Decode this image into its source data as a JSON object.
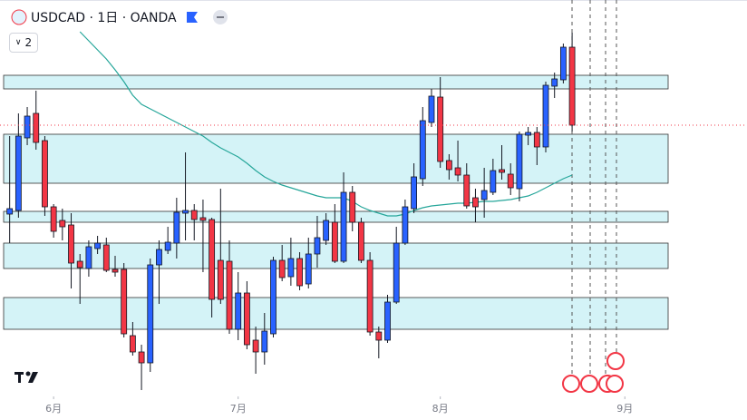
{
  "chart_data": {
    "type": "candlestick",
    "title": "USDCAD · 1日 · OANDA",
    "indicators_shown": "2",
    "up_color": "#2962ff",
    "down_color": "#f23645",
    "ma_color": "#26a69a",
    "zone_color": "#d4f3f7",
    "xlim": [
      -1.1,
      83.9
    ],
    "ylim": [
      0,
      430
    ],
    "xticks": [
      {
        "value": 5,
        "label": "6月"
      },
      {
        "value": 26,
        "label": "7月"
      },
      {
        "value": 49,
        "label": "8月"
      },
      {
        "value": 70,
        "label": "9月"
      }
    ],
    "open": [
      194,
      198,
      278,
      305,
      275,
      202,
      187,
      182,
      142,
      134,
      156,
      160,
      133,
      133,
      60,
      42,
      30,
      138,
      154,
      162,
      195,
      198,
      190,
      188,
      143,
      142,
      67,
      107,
      55,
      42,
      62,
      143,
      125,
      145,
      117,
      150,
      165,
      185,
      142,
      218,
      185,
      143,
      64,
      55,
      97,
      162,
      200,
      233,
      295,
      323,
      253,
      245,
      237,
      212,
      210,
      218,
      243,
      238,
      222,
      281,
      284,
      268,
      335,
      342,
      378
    ],
    "high": [
      280,
      305,
      312,
      330,
      280,
      205,
      200,
      195,
      150,
      165,
      170,
      168,
      148,
      140,
      75,
      50,
      145,
      165,
      180,
      212,
      262,
      205,
      210,
      190,
      222,
      165,
      130,
      120,
      70,
      85,
      147,
      160,
      168,
      152,
      168,
      192,
      195,
      205,
      240,
      225,
      190,
      152,
      70,
      105,
      180,
      210,
      250,
      312,
      332,
      345,
      260,
      275,
      250,
      222,
      245,
      255,
      270,
      250,
      285,
      290,
      290,
      340,
      350,
      382,
      394
    ],
    "low": [
      162,
      190,
      270,
      265,
      192,
      168,
      165,
      112,
      95,
      125,
      150,
      130,
      125,
      58,
      38,
      0,
      20,
      95,
      150,
      145,
      165,
      165,
      130,
      80,
      95,
      62,
      55,
      45,
      18,
      28,
      58,
      120,
      115,
      110,
      112,
      135,
      160,
      140,
      140,
      175,
      140,
      60,
      35,
      52,
      95,
      160,
      195,
      225,
      290,
      245,
      232,
      230,
      200,
      185,
      190,
      215,
      232,
      215,
      208,
      270,
      248,
      262,
      322,
      338,
      285
    ],
    "close": [
      200,
      280,
      302,
      273,
      202,
      175,
      180,
      140,
      135,
      158,
      162,
      132,
      130,
      62,
      42,
      30,
      138,
      155,
      163,
      196,
      198,
      188,
      187,
      100,
      100,
      67,
      107,
      50,
      42,
      65,
      143,
      124,
      145,
      115,
      150,
      168,
      187,
      142,
      218,
      185,
      143,
      64,
      55,
      97,
      162,
      202,
      235,
      297,
      324,
      252,
      243,
      237,
      203,
      202,
      220,
      242,
      240,
      223,
      282,
      284,
      268,
      336,
      343,
      378,
      292
    ],
    "ma": [
      null,
      null,
      null,
      null,
      null,
      null,
      null,
      null,
      395,
      385,
      375,
      365,
      353,
      340,
      325,
      315,
      310,
      305,
      300,
      295,
      290,
      285,
      280,
      273,
      267,
      262,
      257,
      250,
      242,
      235,
      230,
      226,
      223,
      220,
      217,
      214,
      212,
      212,
      212,
      208,
      202,
      198,
      195,
      192,
      192,
      194,
      198,
      201,
      203,
      204,
      205,
      206,
      206,
      207,
      208,
      208,
      209,
      210,
      212,
      214,
      218,
      223,
      228,
      233,
      237
    ],
    "zones": [
      [
        332,
        347
      ],
      [
        228,
        282
      ],
      [
        185,
        197
      ],
      [
        134,
        162
      ],
      [
        67,
        102
      ]
    ]
  }
}
